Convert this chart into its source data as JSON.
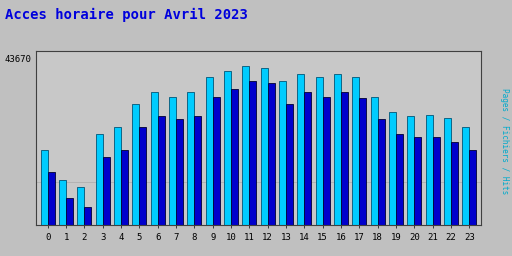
{
  "title": "Acces horaire pour Avril 2023",
  "title_color": "#0000dd",
  "title_fontsize": 10,
  "hours": [
    0,
    1,
    2,
    3,
    4,
    5,
    6,
    7,
    8,
    9,
    10,
    11,
    12,
    13,
    14,
    15,
    16,
    17,
    18,
    19,
    20,
    21,
    22,
    23
  ],
  "hits": [
    38000,
    36000,
    35500,
    39000,
    39500,
    41000,
    41800,
    41500,
    41800,
    42800,
    43200,
    43500,
    43400,
    42500,
    43000,
    42800,
    43000,
    42800,
    41500,
    40500,
    40200,
    40300,
    40100,
    39500
  ],
  "fichiers": [
    36500,
    34800,
    34200,
    37500,
    38000,
    39500,
    40200,
    40000,
    40200,
    41500,
    42000,
    42500,
    42400,
    41000,
    41800,
    41500,
    41800,
    41400,
    40000,
    39000,
    38800,
    38800,
    38500,
    38000
  ],
  "ytick_label": "43670",
  "ylabel": "Pages / Fichiers / Hits",
  "bar_width": 0.38,
  "color_hits": "#00ccff",
  "color_fichiers": "#0000cc",
  "bg_color": "#c0c0c0",
  "plot_bg": "#c8c8c8",
  "border_color": "#404040",
  "ylabel_color": "#00aacc",
  "grid_color": "#aaaaaa",
  "ymin": 33000,
  "ymax": 44500
}
